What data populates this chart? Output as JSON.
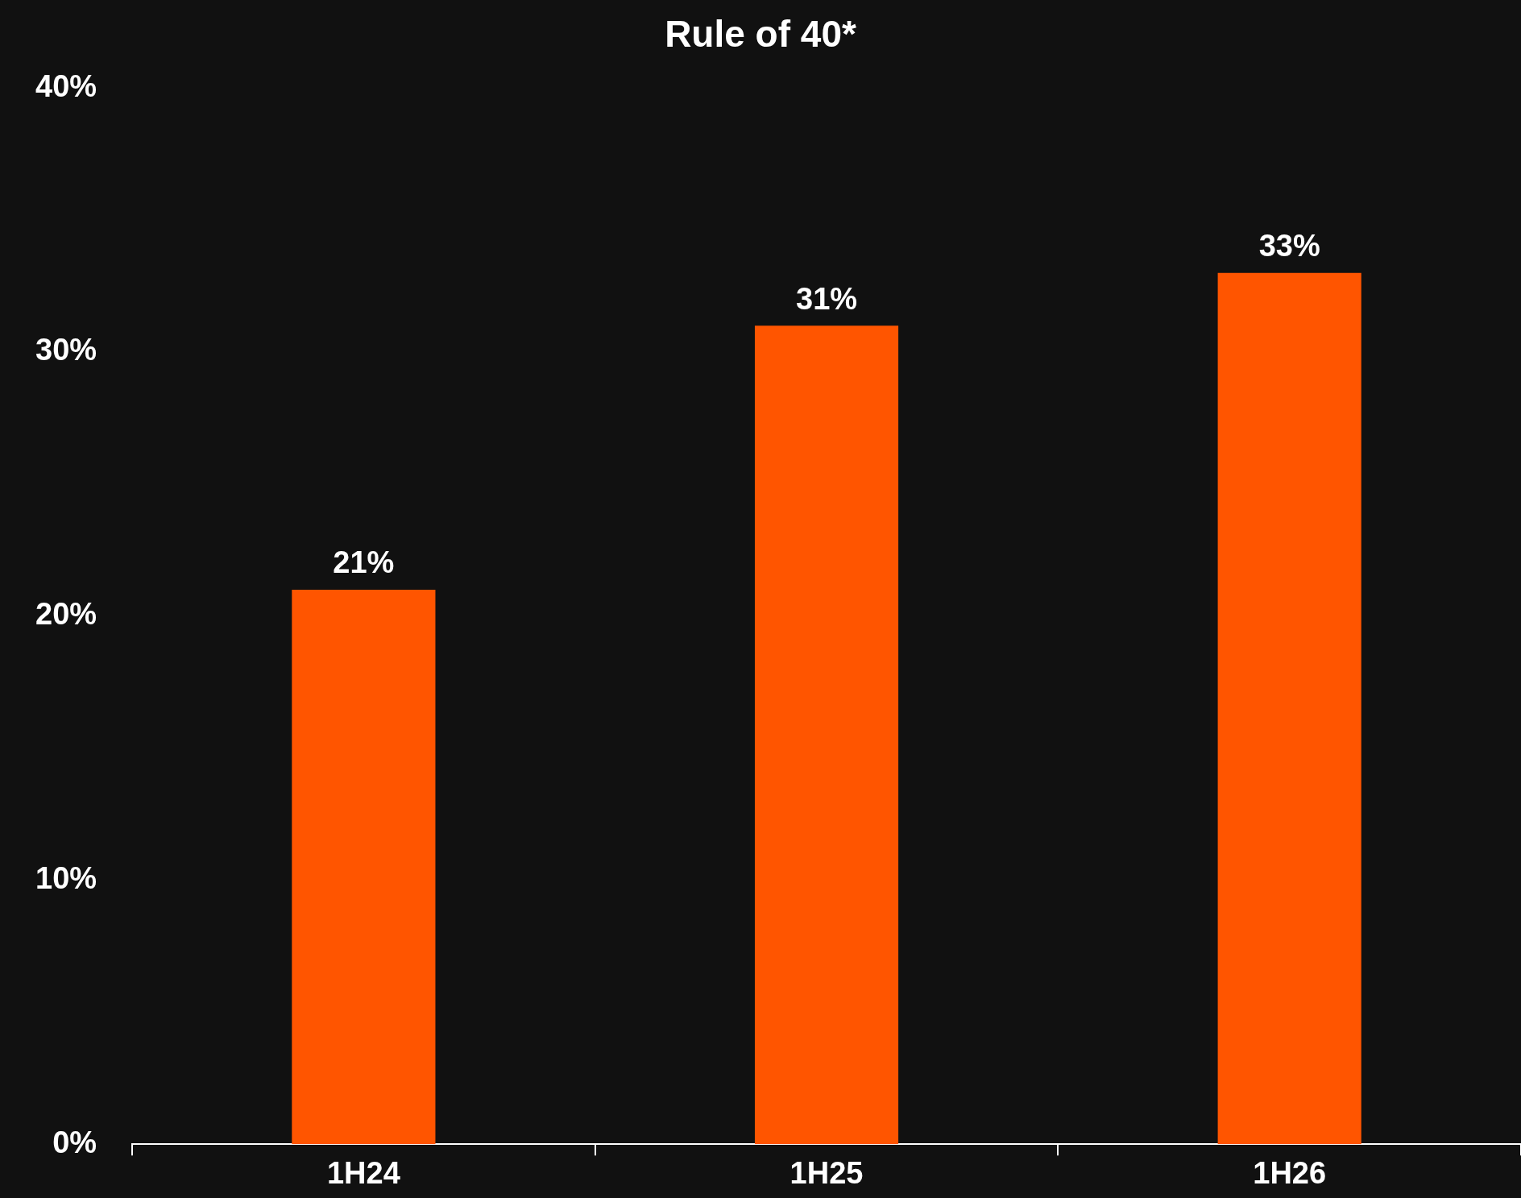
{
  "chart_data": {
    "type": "bar",
    "title": "Rule of 40*",
    "categories": [
      "1H24",
      "1H25",
      "1H26"
    ],
    "values": [
      21,
      31,
      33
    ],
    "color": "#ff5500",
    "ylim": [
      0,
      40
    ],
    "yticks": [
      {
        "value": 0,
        "label": "0%"
      },
      {
        "value": 10,
        "label": "10%"
      },
      {
        "value": 20,
        "label": "20%"
      },
      {
        "value": 30,
        "label": "30%"
      },
      {
        "value": 40,
        "label": "40%"
      }
    ],
    "value_labels": [
      "21%",
      "31%",
      "33%"
    ],
    "grid": false,
    "legend": false
  }
}
